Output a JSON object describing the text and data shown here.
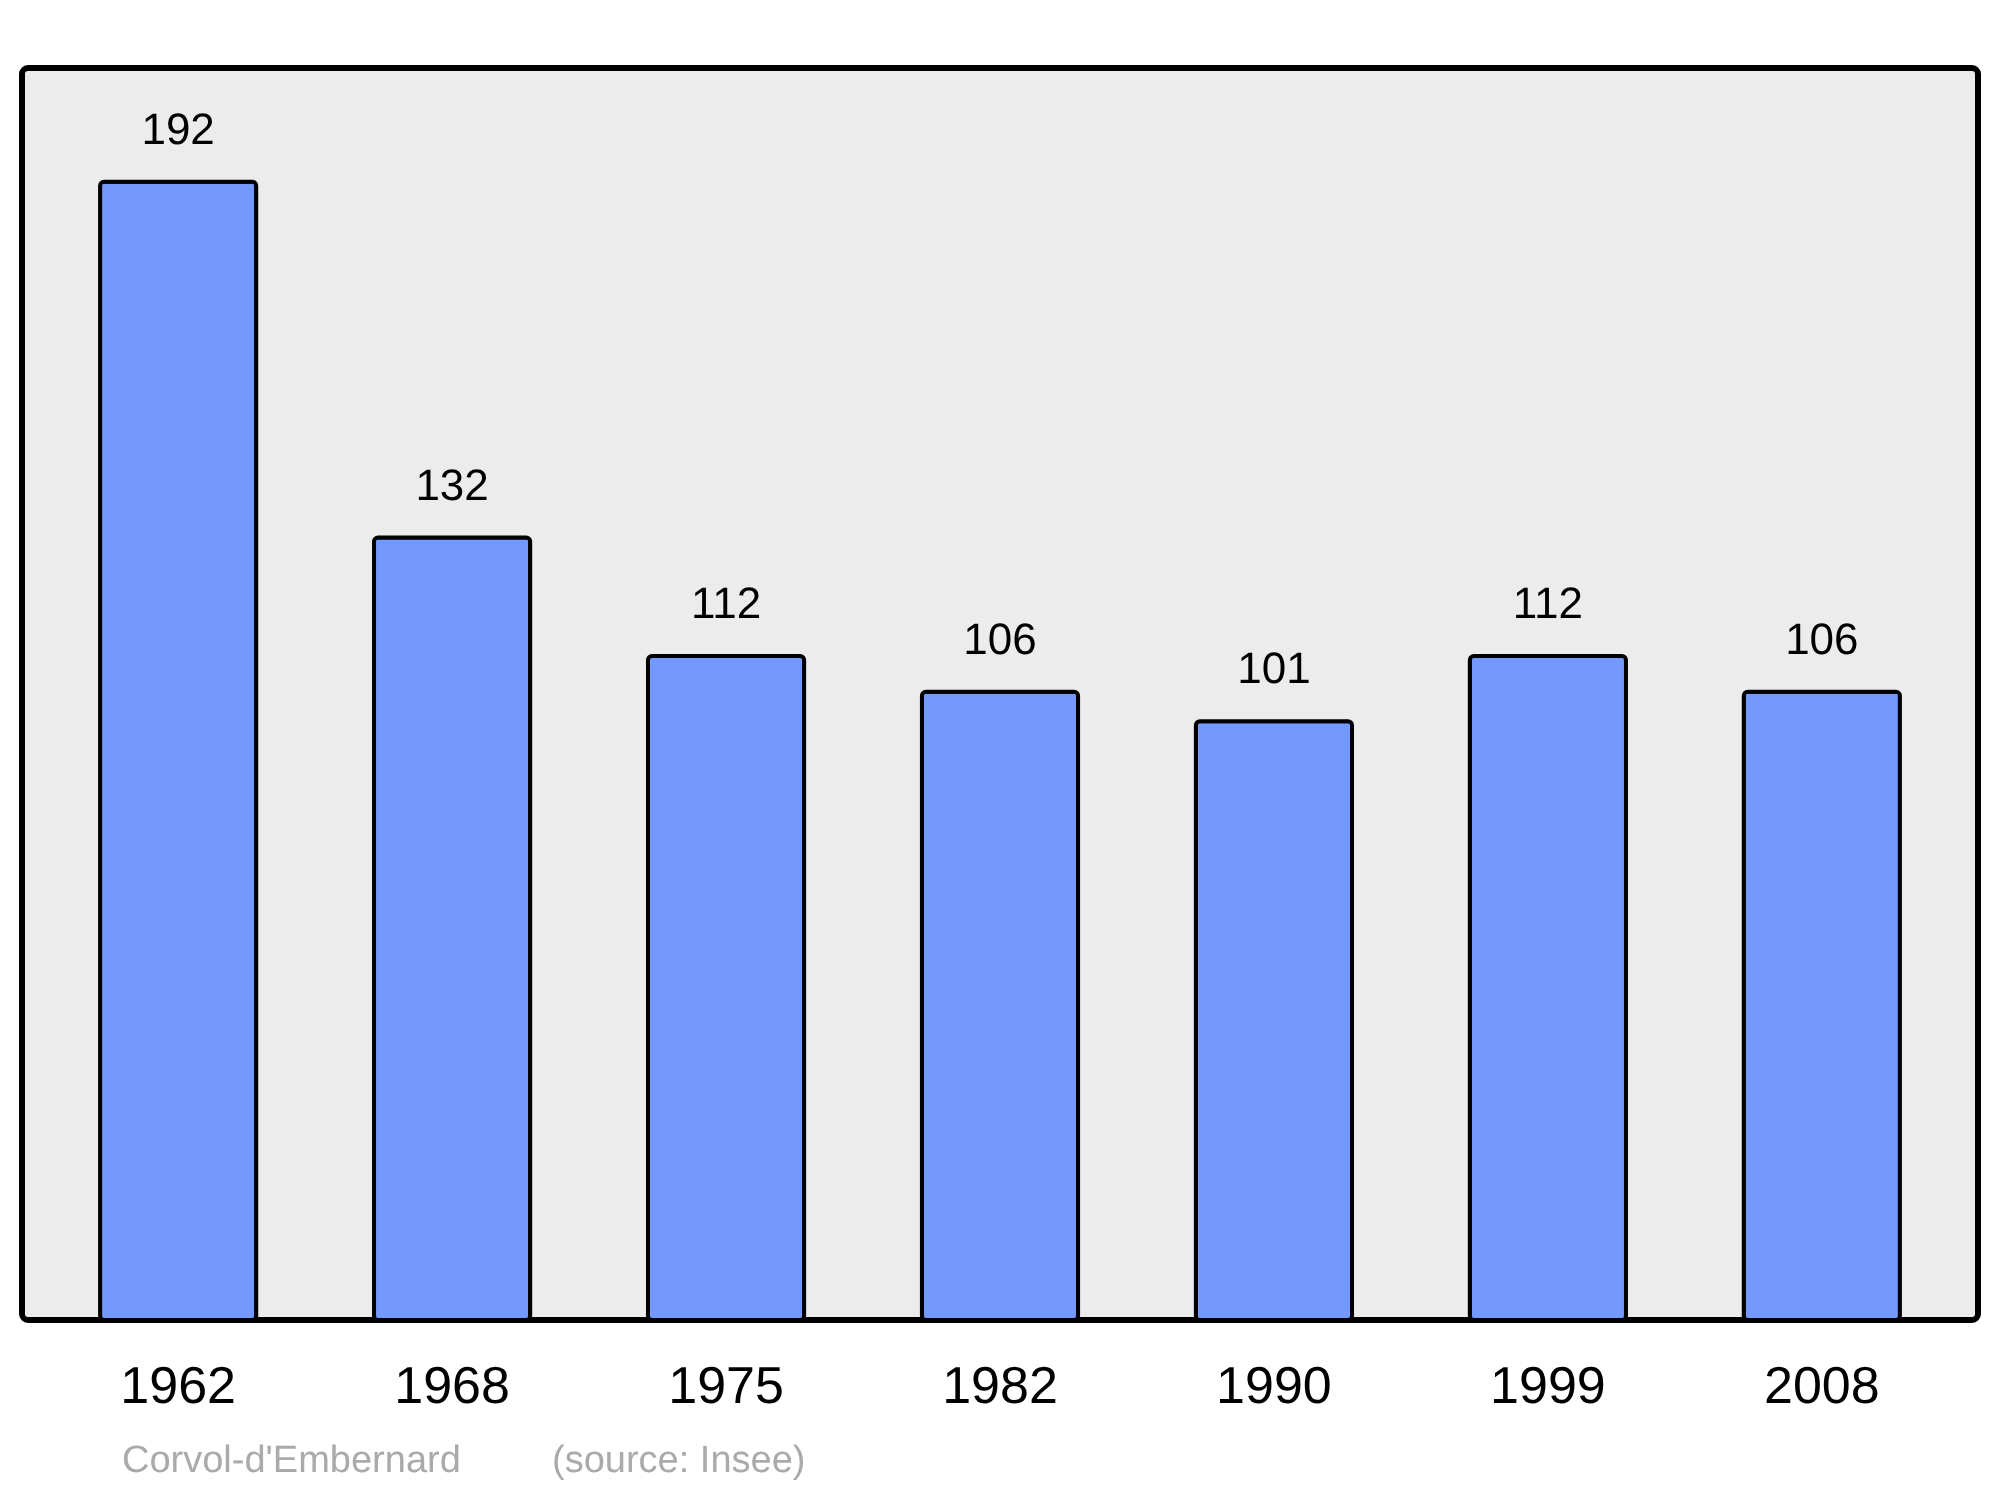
{
  "chart_data": {
    "type": "bar",
    "categories": [
      "1962",
      "1968",
      "1975",
      "1982",
      "1990",
      "1999",
      "2008"
    ],
    "values": [
      192,
      132,
      112,
      106,
      101,
      112,
      106
    ],
    "color": "#7399ff",
    "data_labels": true,
    "annotations": [
      "Corvol-d'Embernard",
      "(source: Insee)"
    ]
  }
}
